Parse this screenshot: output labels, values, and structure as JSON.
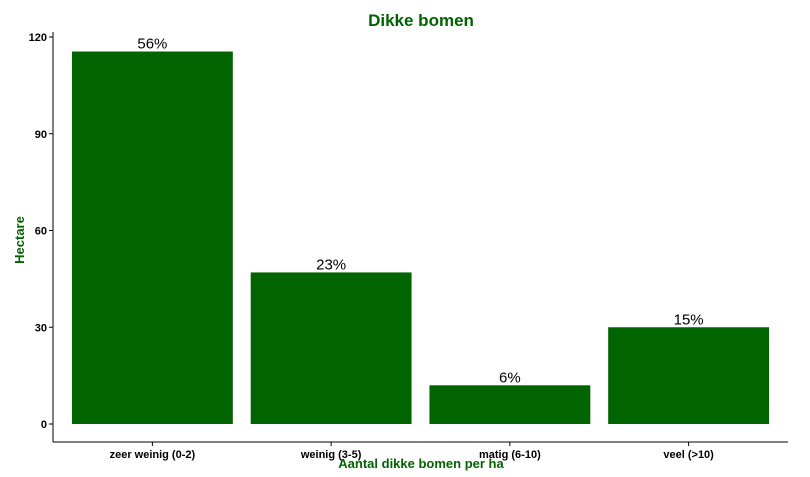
{
  "chart_data": {
    "type": "bar",
    "title": "Dikke bomen",
    "xlabel": "Aantal dikke bomen per ha",
    "ylabel": "Hectare",
    "categories": [
      "zeer weinig (0-2)",
      "weinig (3-5)",
      "matig (6-10)",
      "veel (>10)"
    ],
    "values": [
      115.5,
      47,
      12,
      30
    ],
    "data_labels": [
      "56%",
      "23%",
      "6%",
      "15%"
    ],
    "ylim": [
      0,
      120
    ],
    "yticks": [
      0,
      30,
      60,
      90,
      120
    ],
    "ytick_labels": [
      "0",
      "30",
      "60",
      "90",
      "120"
    ],
    "grid": false,
    "legend": "none",
    "colors": {
      "bar": "#006400",
      "title": "#006400",
      "axis_title": "#006400",
      "axis": "#000000"
    }
  }
}
